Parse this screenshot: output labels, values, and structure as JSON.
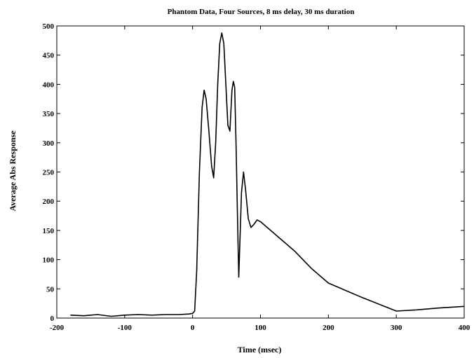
{
  "chart_data": {
    "type": "line",
    "title": "Phantom Data, Four Sources, 8 ms delay, 30 ms duration",
    "xlabel": "Time (msec)",
    "ylabel": "Average Abs Response",
    "xlim": [
      -200,
      400
    ],
    "ylim": [
      0,
      500
    ],
    "xticks": [
      -200,
      -100,
      0,
      100,
      200,
      300,
      400
    ],
    "yticks": [
      0,
      50,
      100,
      150,
      200,
      250,
      300,
      350,
      400,
      450,
      500
    ],
    "grid": false,
    "series": [
      {
        "name": "",
        "color": "#000000",
        "points": [
          [
            -180,
            5
          ],
          [
            -160,
            4
          ],
          [
            -140,
            6
          ],
          [
            -120,
            3
          ],
          [
            -100,
            5
          ],
          [
            -80,
            6
          ],
          [
            -60,
            5
          ],
          [
            -40,
            6
          ],
          [
            -20,
            6
          ],
          [
            -5,
            7
          ],
          [
            0,
            8
          ],
          [
            3,
            12
          ],
          [
            6,
            80
          ],
          [
            10,
            250
          ],
          [
            14,
            360
          ],
          [
            17,
            390
          ],
          [
            20,
            375
          ],
          [
            24,
            320
          ],
          [
            28,
            260
          ],
          [
            31,
            240
          ],
          [
            34,
            300
          ],
          [
            37,
            400
          ],
          [
            40,
            470
          ],
          [
            43,
            488
          ],
          [
            46,
            470
          ],
          [
            49,
            400
          ],
          [
            52,
            330
          ],
          [
            55,
            320
          ],
          [
            58,
            390
          ],
          [
            60,
            405
          ],
          [
            62,
            395
          ],
          [
            64,
            300
          ],
          [
            66,
            180
          ],
          [
            68,
            70
          ],
          [
            70,
            140
          ],
          [
            72,
            215
          ],
          [
            75,
            250
          ],
          [
            78,
            220
          ],
          [
            82,
            170
          ],
          [
            86,
            155
          ],
          [
            90,
            160
          ],
          [
            95,
            168
          ],
          [
            100,
            165
          ],
          [
            120,
            145
          ],
          [
            150,
            115
          ],
          [
            175,
            85
          ],
          [
            200,
            60
          ],
          [
            250,
            35
          ],
          [
            300,
            12
          ],
          [
            330,
            14
          ],
          [
            360,
            17
          ],
          [
            400,
            20
          ]
        ]
      }
    ]
  }
}
